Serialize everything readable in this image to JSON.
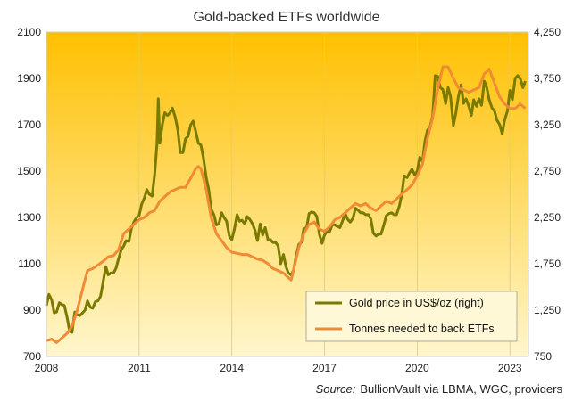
{
  "chart_data": {
    "type": "line",
    "title": "Gold-backed ETFs worldwide",
    "source_prefix": "Source:",
    "source_text": "BullionVault via LBMA, WGC, providers",
    "x_ticks": [
      "2008",
      "2011",
      "2014",
      "2017",
      "2020",
      "2023"
    ],
    "xlim": [
      2008,
      2023.6
    ],
    "y_left": {
      "lim": [
        700,
        2100
      ],
      "ticks": [
        "700",
        "900",
        "1100",
        "1300",
        "1500",
        "1700",
        "1900",
        "2100"
      ]
    },
    "y_right": {
      "lim": [
        750,
        4250
      ],
      "ticks": [
        "750",
        "1,250",
        "1,750",
        "2,250",
        "2,750",
        "3,250",
        "3,750",
        "4,250"
      ]
    },
    "legend_position": "bottom-right",
    "grid": "vertical",
    "colors": {
      "gold": "#7a7a00",
      "tonnes": "#f08a35",
      "bg_top": "#ffc000",
      "bg_bottom": "#fff6cc"
    },
    "series": [
      {
        "name": "Gold price in US$/oz (right)",
        "axis": "right",
        "points": [
          [
            2008.0,
            1300
          ],
          [
            2008.08,
            1420
          ],
          [
            2008.17,
            1360
          ],
          [
            2008.25,
            1220
          ],
          [
            2008.33,
            1230
          ],
          [
            2008.42,
            1330
          ],
          [
            2008.5,
            1310
          ],
          [
            2008.58,
            1300
          ],
          [
            2008.67,
            1170
          ],
          [
            2008.75,
            1020
          ],
          [
            2008.83,
            1010
          ],
          [
            2008.92,
            1230
          ],
          [
            2009.0,
            1200
          ],
          [
            2009.08,
            1190
          ],
          [
            2009.17,
            1220
          ],
          [
            2009.25,
            1250
          ],
          [
            2009.33,
            1350
          ],
          [
            2009.42,
            1280
          ],
          [
            2009.5,
            1270
          ],
          [
            2009.58,
            1340
          ],
          [
            2009.67,
            1350
          ],
          [
            2009.75,
            1400
          ],
          [
            2009.83,
            1540
          ],
          [
            2009.92,
            1720
          ],
          [
            2010.0,
            1630
          ],
          [
            2010.08,
            1650
          ],
          [
            2010.17,
            1650
          ],
          [
            2010.25,
            1700
          ],
          [
            2010.33,
            1800
          ],
          [
            2010.42,
            1900
          ],
          [
            2010.5,
            1940
          ],
          [
            2010.58,
            2000
          ],
          [
            2010.67,
            1990
          ],
          [
            2010.75,
            2130
          ],
          [
            2010.83,
            2200
          ],
          [
            2010.92,
            2250
          ],
          [
            2011.0,
            2270
          ],
          [
            2011.08,
            2390
          ],
          [
            2011.17,
            2460
          ],
          [
            2011.25,
            2550
          ],
          [
            2011.33,
            2500
          ],
          [
            2011.42,
            2480
          ],
          [
            2011.5,
            2710
          ],
          [
            2011.58,
            3050
          ],
          [
            2011.62,
            3530
          ],
          [
            2011.67,
            3050
          ],
          [
            2011.75,
            3250
          ],
          [
            2011.83,
            3380
          ],
          [
            2011.92,
            3350
          ],
          [
            2012.0,
            3380
          ],
          [
            2012.08,
            3430
          ],
          [
            2012.17,
            3330
          ],
          [
            2012.25,
            3200
          ],
          [
            2012.33,
            2950
          ],
          [
            2012.42,
            2950
          ],
          [
            2012.5,
            3100
          ],
          [
            2012.58,
            3120
          ],
          [
            2012.67,
            3250
          ],
          [
            2012.75,
            3290
          ],
          [
            2012.83,
            3180
          ],
          [
            2012.92,
            3050
          ],
          [
            2013.0,
            3030
          ],
          [
            2013.08,
            2900
          ],
          [
            2013.17,
            2680
          ],
          [
            2013.25,
            2560
          ],
          [
            2013.33,
            2340
          ],
          [
            2013.42,
            2280
          ],
          [
            2013.5,
            2170
          ],
          [
            2013.58,
            2180
          ],
          [
            2013.67,
            2300
          ],
          [
            2013.75,
            2250
          ],
          [
            2013.83,
            2210
          ],
          [
            2013.92,
            2050
          ],
          [
            2014.0,
            2010
          ],
          [
            2014.08,
            2120
          ],
          [
            2014.17,
            2280
          ],
          [
            2014.25,
            2210
          ],
          [
            2014.33,
            2220
          ],
          [
            2014.42,
            2180
          ],
          [
            2014.5,
            2260
          ],
          [
            2014.58,
            2230
          ],
          [
            2014.67,
            2180
          ],
          [
            2014.75,
            2110
          ],
          [
            2014.83,
            2000
          ],
          [
            2014.92,
            2180
          ],
          [
            2015.0,
            2060
          ],
          [
            2015.08,
            2140
          ],
          [
            2015.17,
            2010
          ],
          [
            2015.25,
            2010
          ],
          [
            2015.33,
            1980
          ],
          [
            2015.42,
            1980
          ],
          [
            2015.5,
            1940
          ],
          [
            2015.58,
            1750
          ],
          [
            2015.67,
            1850
          ],
          [
            2015.75,
            1720
          ],
          [
            2015.83,
            1650
          ],
          [
            2015.92,
            1630
          ],
          [
            2016.0,
            1680
          ],
          [
            2016.08,
            1830
          ],
          [
            2016.17,
            1960
          ],
          [
            2016.25,
            1980
          ],
          [
            2016.33,
            2130
          ],
          [
            2016.42,
            2140
          ],
          [
            2016.5,
            2290
          ],
          [
            2016.58,
            2310
          ],
          [
            2016.67,
            2300
          ],
          [
            2016.75,
            2260
          ],
          [
            2016.83,
            2070
          ],
          [
            2016.92,
            1970
          ],
          [
            2017.0,
            2060
          ],
          [
            2017.08,
            2100
          ],
          [
            2017.17,
            2100
          ],
          [
            2017.25,
            2170
          ],
          [
            2017.33,
            2170
          ],
          [
            2017.42,
            2150
          ],
          [
            2017.5,
            2140
          ],
          [
            2017.58,
            2210
          ],
          [
            2017.67,
            2290
          ],
          [
            2017.75,
            2230
          ],
          [
            2017.83,
            2200
          ],
          [
            2017.92,
            2240
          ],
          [
            2018.0,
            2350
          ],
          [
            2018.08,
            2330
          ],
          [
            2018.17,
            2300
          ],
          [
            2018.25,
            2300
          ],
          [
            2018.33,
            2280
          ],
          [
            2018.42,
            2280
          ],
          [
            2018.5,
            2230
          ],
          [
            2018.58,
            2080
          ],
          [
            2018.67,
            2050
          ],
          [
            2018.75,
            2070
          ],
          [
            2018.83,
            2070
          ],
          [
            2018.92,
            2170
          ],
          [
            2019.0,
            2270
          ],
          [
            2019.08,
            2290
          ],
          [
            2019.17,
            2300
          ],
          [
            2019.25,
            2280
          ],
          [
            2019.33,
            2280
          ],
          [
            2019.42,
            2370
          ],
          [
            2019.5,
            2500
          ],
          [
            2019.58,
            2700
          ],
          [
            2019.67,
            2680
          ],
          [
            2019.75,
            2730
          ],
          [
            2019.83,
            2770
          ],
          [
            2019.92,
            2710
          ],
          [
            2020.0,
            2750
          ],
          [
            2020.08,
            2900
          ],
          [
            2020.17,
            2850
          ],
          [
            2020.25,
            3070
          ],
          [
            2020.33,
            3190
          ],
          [
            2020.42,
            3230
          ],
          [
            2020.5,
            3350
          ],
          [
            2020.58,
            3780
          ],
          [
            2020.67,
            3770
          ],
          [
            2020.75,
            3650
          ],
          [
            2020.83,
            3630
          ],
          [
            2020.92,
            3480
          ],
          [
            2021.0,
            3650
          ],
          [
            2021.08,
            3550
          ],
          [
            2021.17,
            3240
          ],
          [
            2021.25,
            3380
          ],
          [
            2021.33,
            3550
          ],
          [
            2021.42,
            3680
          ],
          [
            2021.5,
            3480
          ],
          [
            2021.58,
            3530
          ],
          [
            2021.67,
            3450
          ],
          [
            2021.75,
            3350
          ],
          [
            2021.83,
            3520
          ],
          [
            2021.92,
            3450
          ],
          [
            2022.0,
            3530
          ],
          [
            2022.08,
            3460
          ],
          [
            2022.17,
            3720
          ],
          [
            2022.25,
            3650
          ],
          [
            2022.33,
            3520
          ],
          [
            2022.42,
            3430
          ],
          [
            2022.5,
            3400
          ],
          [
            2022.58,
            3300
          ],
          [
            2022.67,
            3250
          ],
          [
            2022.75,
            3150
          ],
          [
            2022.83,
            3300
          ],
          [
            2022.92,
            3400
          ],
          [
            2023.0,
            3620
          ],
          [
            2023.08,
            3520
          ],
          [
            2023.17,
            3750
          ],
          [
            2023.25,
            3780
          ],
          [
            2023.33,
            3750
          ],
          [
            2023.42,
            3650
          ],
          [
            2023.5,
            3720
          ]
        ]
      },
      {
        "name": "Tonnes needed to back ETFs",
        "axis": "left",
        "points": [
          [
            2008.0,
            768
          ],
          [
            2008.17,
            775
          ],
          [
            2008.33,
            760
          ],
          [
            2008.5,
            780
          ],
          [
            2008.67,
            800
          ],
          [
            2008.83,
            830
          ],
          [
            2009.0,
            900
          ],
          [
            2009.17,
            990
          ],
          [
            2009.33,
            1070
          ],
          [
            2009.5,
            1080
          ],
          [
            2009.67,
            1095
          ],
          [
            2009.83,
            1110
          ],
          [
            2010.0,
            1130
          ],
          [
            2010.17,
            1135
          ],
          [
            2010.33,
            1160
          ],
          [
            2010.5,
            1230
          ],
          [
            2010.67,
            1250
          ],
          [
            2010.83,
            1270
          ],
          [
            2011.0,
            1290
          ],
          [
            2011.17,
            1300
          ],
          [
            2011.33,
            1320
          ],
          [
            2011.5,
            1330
          ],
          [
            2011.67,
            1370
          ],
          [
            2011.83,
            1390
          ],
          [
            2012.0,
            1410
          ],
          [
            2012.17,
            1420
          ],
          [
            2012.33,
            1430
          ],
          [
            2012.5,
            1430
          ],
          [
            2012.67,
            1470
          ],
          [
            2012.83,
            1510
          ],
          [
            2012.92,
            1520
          ],
          [
            2013.0,
            1510
          ],
          [
            2013.17,
            1420
          ],
          [
            2013.33,
            1300
          ],
          [
            2013.5,
            1230
          ],
          [
            2013.67,
            1200
          ],
          [
            2013.83,
            1170
          ],
          [
            2014.0,
            1150
          ],
          [
            2014.17,
            1145
          ],
          [
            2014.33,
            1140
          ],
          [
            2014.5,
            1140
          ],
          [
            2014.67,
            1130
          ],
          [
            2014.83,
            1120
          ],
          [
            2015.0,
            1115
          ],
          [
            2015.17,
            1100
          ],
          [
            2015.33,
            1080
          ],
          [
            2015.5,
            1070
          ],
          [
            2015.67,
            1060
          ],
          [
            2015.83,
            1040
          ],
          [
            2015.92,
            1030
          ],
          [
            2016.0,
            1075
          ],
          [
            2016.17,
            1170
          ],
          [
            2016.33,
            1230
          ],
          [
            2016.5,
            1270
          ],
          [
            2016.67,
            1280
          ],
          [
            2016.83,
            1250
          ],
          [
            2017.0,
            1240
          ],
          [
            2017.17,
            1260
          ],
          [
            2017.33,
            1290
          ],
          [
            2017.5,
            1300
          ],
          [
            2017.67,
            1320
          ],
          [
            2017.83,
            1340
          ],
          [
            2018.0,
            1360
          ],
          [
            2018.17,
            1350
          ],
          [
            2018.33,
            1360
          ],
          [
            2018.5,
            1340
          ],
          [
            2018.67,
            1330
          ],
          [
            2018.83,
            1350
          ],
          [
            2019.0,
            1370
          ],
          [
            2019.17,
            1360
          ],
          [
            2019.33,
            1380
          ],
          [
            2019.5,
            1400
          ],
          [
            2019.67,
            1420
          ],
          [
            2019.83,
            1440
          ],
          [
            2020.0,
            1480
          ],
          [
            2020.17,
            1530
          ],
          [
            2020.33,
            1640
          ],
          [
            2020.5,
            1730
          ],
          [
            2020.67,
            1860
          ],
          [
            2020.83,
            1950
          ],
          [
            2021.0,
            1950
          ],
          [
            2021.17,
            1900
          ],
          [
            2021.33,
            1860
          ],
          [
            2021.5,
            1850
          ],
          [
            2021.67,
            1840
          ],
          [
            2021.83,
            1850
          ],
          [
            2022.0,
            1860
          ],
          [
            2022.17,
            1920
          ],
          [
            2022.33,
            1940
          ],
          [
            2022.5,
            1880
          ],
          [
            2022.67,
            1820
          ],
          [
            2022.83,
            1790
          ],
          [
            2023.0,
            1770
          ],
          [
            2023.17,
            1770
          ],
          [
            2023.33,
            1790
          ],
          [
            2023.5,
            1770
          ]
        ]
      }
    ]
  }
}
